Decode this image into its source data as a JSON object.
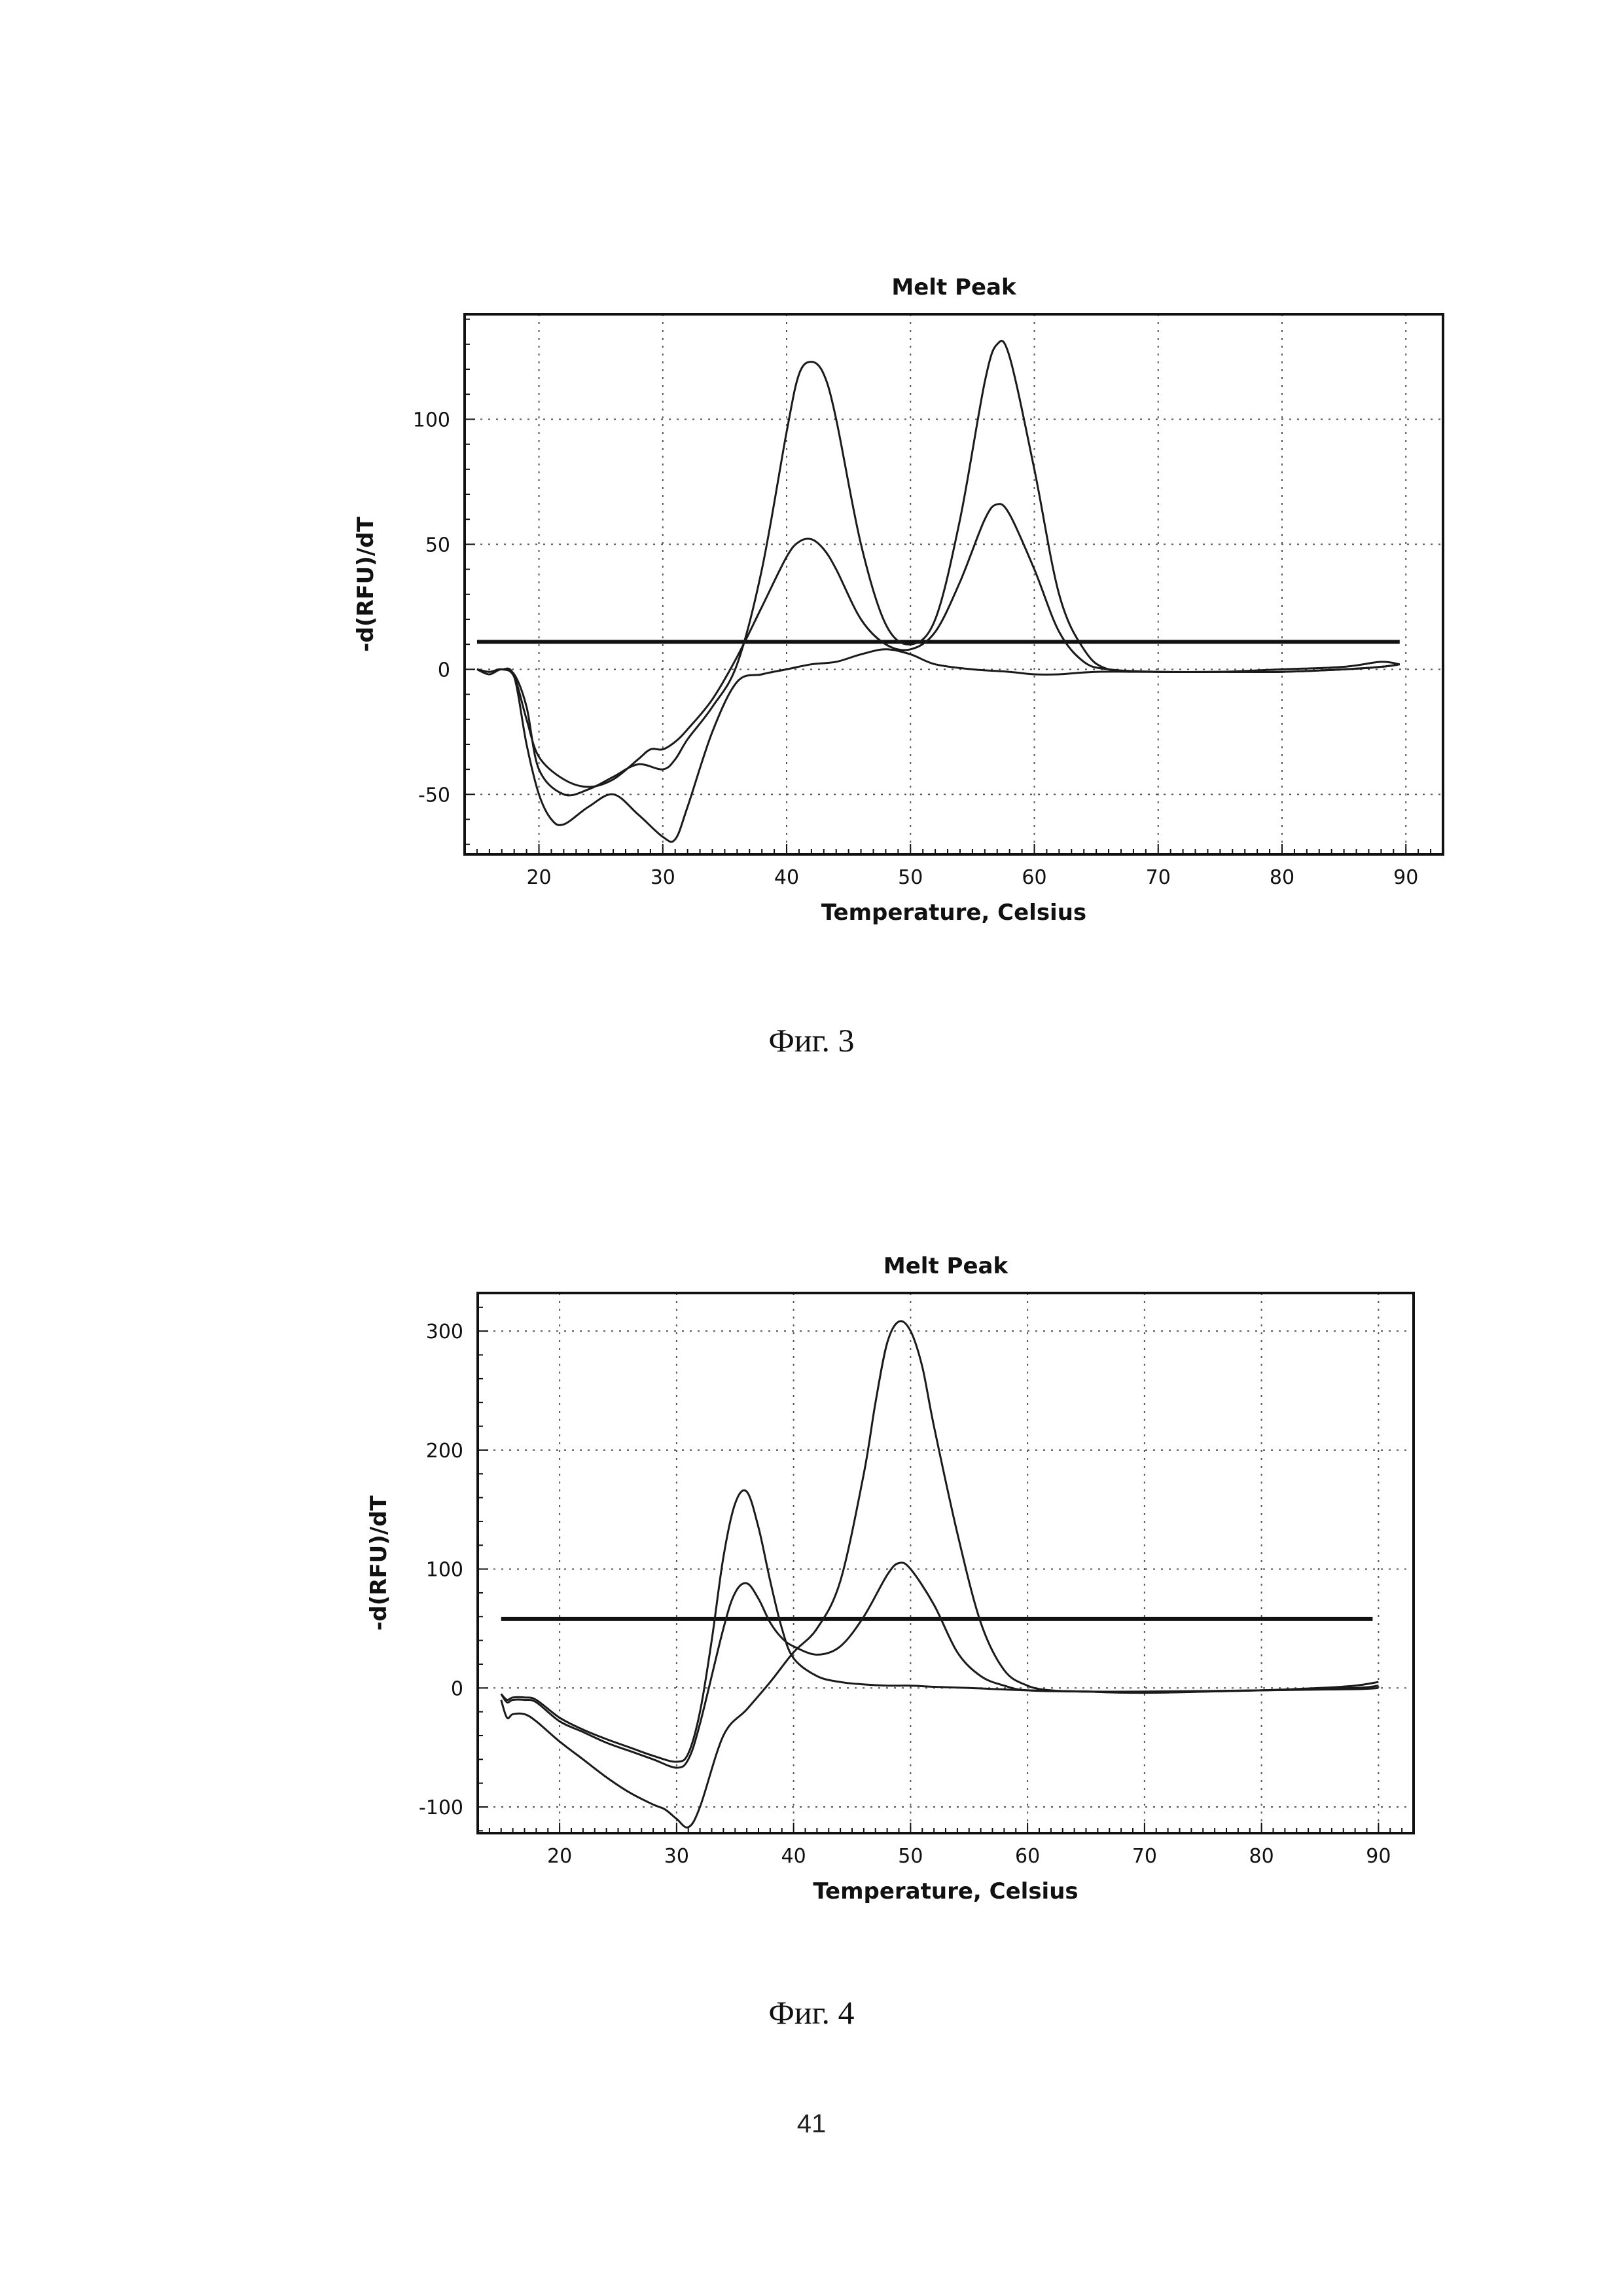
{
  "chart_data": [
    {
      "type": "line",
      "title": "Melt Peak",
      "xlabel": "Temperature, Celsius",
      "ylabel": "-d(RFU)/dT",
      "xlim": [
        14,
        93
      ],
      "ylim": [
        -74,
        142
      ],
      "xticks": [
        20,
        30,
        40,
        50,
        60,
        70,
        80,
        90
      ],
      "yticks": [
        -50,
        0,
        50,
        100
      ],
      "grid": true,
      "threshold": 11,
      "series": [
        {
          "x": [
            15,
            16,
            17,
            18,
            19,
            20,
            22,
            24,
            26,
            28,
            30,
            31,
            32,
            34,
            36,
            38,
            40,
            41,
            42,
            43,
            44,
            46,
            48,
            50,
            52,
            54,
            56,
            57,
            58,
            60,
            62,
            64,
            66,
            70,
            75,
            80,
            85,
            88,
            89.5
          ],
          "y": [
            0,
            -1,
            0,
            -2,
            -15,
            -40,
            -50,
            -48,
            -43,
            -38,
            -40,
            -36,
            -28,
            -15,
            2,
            40,
            95,
            118,
            123,
            118,
            100,
            50,
            18,
            10,
            20,
            60,
            115,
            130,
            125,
            80,
            30,
            8,
            0,
            -1,
            -1,
            -1,
            0,
            1,
            2
          ]
        },
        {
          "x": [
            15,
            16,
            17,
            18,
            19,
            20,
            22,
            24,
            26,
            28,
            29,
            30,
            31,
            32,
            34,
            36,
            38,
            40,
            41,
            42,
            43,
            44,
            46,
            48,
            50,
            52,
            54,
            56,
            57,
            58,
            60,
            62,
            64,
            66,
            70,
            75,
            80,
            85,
            88,
            89.5
          ],
          "y": [
            0,
            -1,
            0,
            -3,
            -20,
            -35,
            -44,
            -47,
            -44,
            -36,
            -32,
            -32,
            -29,
            -24,
            -12,
            5,
            25,
            45,
            51,
            52,
            48,
            40,
            20,
            10,
            8,
            15,
            35,
            60,
            66,
            62,
            40,
            15,
            3,
            0,
            -1,
            -1,
            -1,
            0,
            1,
            2
          ]
        },
        {
          "x": [
            15,
            16,
            17,
            18,
            19,
            20,
            21,
            22,
            24,
            26,
            28,
            30,
            31,
            32,
            34,
            36,
            38,
            40,
            42,
            44,
            46,
            48,
            50,
            52,
            55,
            58,
            60,
            62,
            65,
            70,
            75,
            80,
            85,
            88,
            89.5
          ],
          "y": [
            0,
            -2,
            0,
            -3,
            -30,
            -50,
            -60,
            -62,
            -55,
            -50,
            -58,
            -67,
            -68,
            -55,
            -25,
            -5,
            -2,
            0,
            2,
            3,
            6,
            8,
            6,
            2,
            0,
            -1,
            -2,
            -2,
            -1,
            -1,
            -1,
            0,
            1,
            3,
            2
          ]
        }
      ]
    },
    {
      "type": "line",
      "title": "Melt Peak",
      "xlabel": "Temperature, Celsius",
      "ylabel": "-d(RFU)/dT",
      "xlim": [
        13,
        93
      ],
      "ylim": [
        -122,
        332
      ],
      "xticks": [
        20,
        30,
        40,
        50,
        60,
        70,
        80,
        90
      ],
      "yticks": [
        -100,
        0,
        100,
        200,
        300
      ],
      "grid": true,
      "threshold": 58,
      "series": [
        {
          "x": [
            15,
            15.5,
            16,
            17,
            18,
            20,
            22,
            24,
            26,
            28,
            30,
            31,
            32,
            33,
            34,
            35,
            36,
            37,
            38,
            39,
            40,
            42,
            44,
            46,
            48,
            50,
            52,
            55,
            60,
            65,
            70,
            80,
            88,
            90
          ],
          "y": [
            -5,
            -10,
            -8,
            -8,
            -10,
            -25,
            -35,
            -43,
            -50,
            -57,
            -62,
            -55,
            -20,
            40,
            110,
            155,
            165,
            135,
            90,
            50,
            25,
            10,
            5,
            3,
            2,
            2,
            1,
            0,
            -2,
            -3,
            -4,
            -2,
            -1,
            0
          ]
        },
        {
          "x": [
            15,
            15.5,
            16,
            17,
            18,
            20,
            22,
            24,
            26,
            28,
            30,
            31,
            32,
            34,
            35,
            36,
            37,
            38,
            39,
            40,
            42,
            44,
            46,
            48,
            49,
            50,
            52,
            54,
            56,
            58,
            60,
            65,
            70,
            80,
            88,
            90
          ],
          "y": [
            -5,
            -12,
            -10,
            -10,
            -12,
            -28,
            -37,
            -46,
            -53,
            -60,
            -67,
            -60,
            -30,
            50,
            80,
            88,
            75,
            55,
            42,
            35,
            28,
            35,
            60,
            95,
            105,
            100,
            70,
            30,
            10,
            2,
            -2,
            -3,
            -3,
            -2,
            0,
            2
          ]
        },
        {
          "x": [
            15,
            15.5,
            16,
            17,
            18,
            20,
            22,
            24,
            26,
            28,
            29,
            30,
            31,
            32,
            34,
            36,
            38,
            40,
            42,
            44,
            46,
            47,
            48,
            49,
            50,
            51,
            52,
            54,
            56,
            58,
            60,
            62,
            65,
            70,
            75,
            80,
            85,
            88,
            90
          ],
          "y": [
            -10,
            -25,
            -22,
            -22,
            -28,
            -45,
            -60,
            -75,
            -88,
            -98,
            -102,
            -110,
            -117,
            -100,
            -40,
            -18,
            5,
            30,
            50,
            90,
            180,
            240,
            290,
            308,
            300,
            270,
            220,
            130,
            55,
            15,
            2,
            -2,
            -3,
            -4,
            -3,
            -2,
            0,
            2,
            5
          ]
        }
      ]
    }
  ],
  "captions": {
    "fig3": "Фиг. 3",
    "fig4": "Фиг. 4"
  },
  "page_number": "41"
}
